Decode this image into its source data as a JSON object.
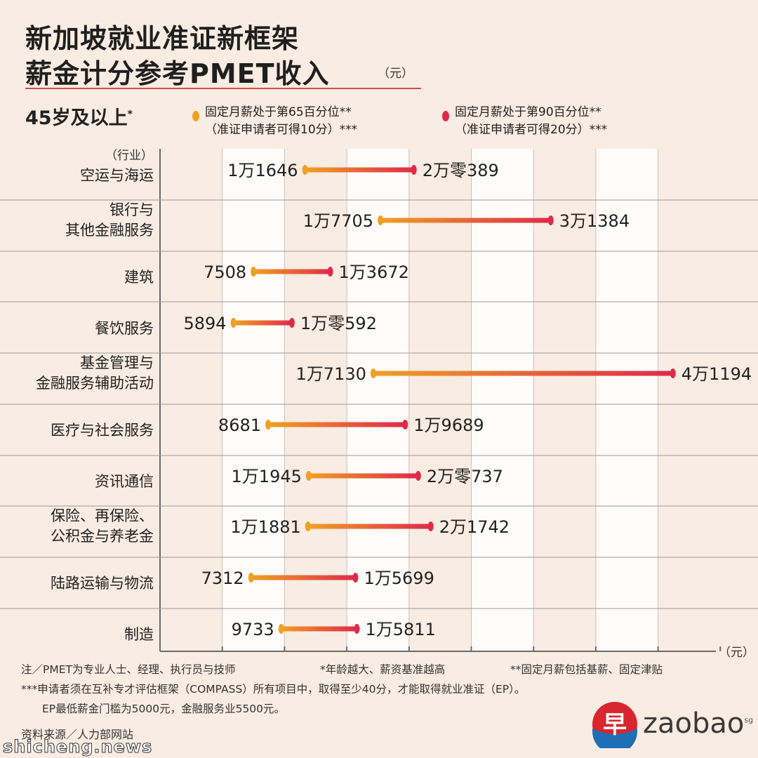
{
  "title": {
    "line1": "新加坡就业准证新框架",
    "line2": "薪金计分参考PMET收入",
    "unit": "（元）"
  },
  "subtitle": {
    "age": "45岁及以上",
    "age_mark": "*"
  },
  "legend": [
    {
      "line1": "固定月薪处于第65百分位**",
      "line2": "（准证申请者可得10分）***",
      "color": "#f0a024"
    },
    {
      "line1": "固定月薪处于第90百分位**",
      "line2": "（准证申请者可得20分）***",
      "color": "#e02a4a"
    }
  ],
  "colors": {
    "p65": "#f0a024",
    "p90": "#e02a4a",
    "grid": "#9a9a9a",
    "band": "#ffffff",
    "accent": "#d44a4a"
  },
  "chart_data": {
    "type": "range-bar",
    "ylabel": "（行业）",
    "xlabel": "（元）",
    "xlim": [
      0,
      45000
    ],
    "series": [
      {
        "name": "固定月薪处于第65百分位**"
      },
      {
        "name": "固定月薪处于第90百分位**"
      }
    ],
    "rows": [
      {
        "category": [
          "空运与海运"
        ],
        "p65": 11646,
        "p90": 20389,
        "p65_label": "1万1646",
        "p90_label": "2万零389"
      },
      {
        "category": [
          "银行与",
          "其他金融服务"
        ],
        "p65": 17705,
        "p90": 31384,
        "p65_label": "1万7705",
        "p90_label": "3万1384"
      },
      {
        "category": [
          "建筑"
        ],
        "p65": 7508,
        "p90": 13672,
        "p65_label": "7508",
        "p90_label": "1万3672"
      },
      {
        "category": [
          "餐饮服务"
        ],
        "p65": 5894,
        "p90": 10592,
        "p65_label": "5894",
        "p90_label": "1万零592"
      },
      {
        "category": [
          "基金管理与",
          "金融服务辅助活动"
        ],
        "p65": 17130,
        "p90": 41194,
        "p65_label": "1万7130",
        "p90_label": "4万1194"
      },
      {
        "category": [
          "医疗与社会服务"
        ],
        "p65": 8681,
        "p90": 19689,
        "p65_label": "8681",
        "p90_label": "1万9689"
      },
      {
        "category": [
          "资讯通信"
        ],
        "p65": 11945,
        "p90": 20737,
        "p65_label": "1万1945",
        "p90_label": "2万零737"
      },
      {
        "category": [
          "保险、再保险、",
          "公积金与养老金"
        ],
        "p65": 11881,
        "p90": 21742,
        "p65_label": "1万1881",
        "p90_label": "2万1742"
      },
      {
        "category": [
          "陆路运输与物流"
        ],
        "p65": 7312,
        "p90": 15699,
        "p65_label": "7312",
        "p90_label": "1万5699"
      },
      {
        "category": [
          "制造"
        ],
        "p65": 9733,
        "p90": 15811,
        "p65_label": "9733",
        "p90_label": "1万5811"
      }
    ]
  },
  "footnotes": {
    "note1": "注／PMET为专业人士、经理、执行员与技师",
    "note2": "*年龄越大、薪资基准越高",
    "note3": "**固定月薪包括基薪、固定津贴",
    "note4": "***申请者须在互补专才评估框架（COMPASS）所有项目中，取得至少40分，才能取得就业准证（EP）。",
    "note5": "EP最低薪金门槛为5000元，金融服务业5500元。",
    "source": "资料来源／人力部网站"
  },
  "watermark": "shicheng.news",
  "brand": {
    "char": "早",
    "name": "zaobao",
    "tld": "sg"
  }
}
